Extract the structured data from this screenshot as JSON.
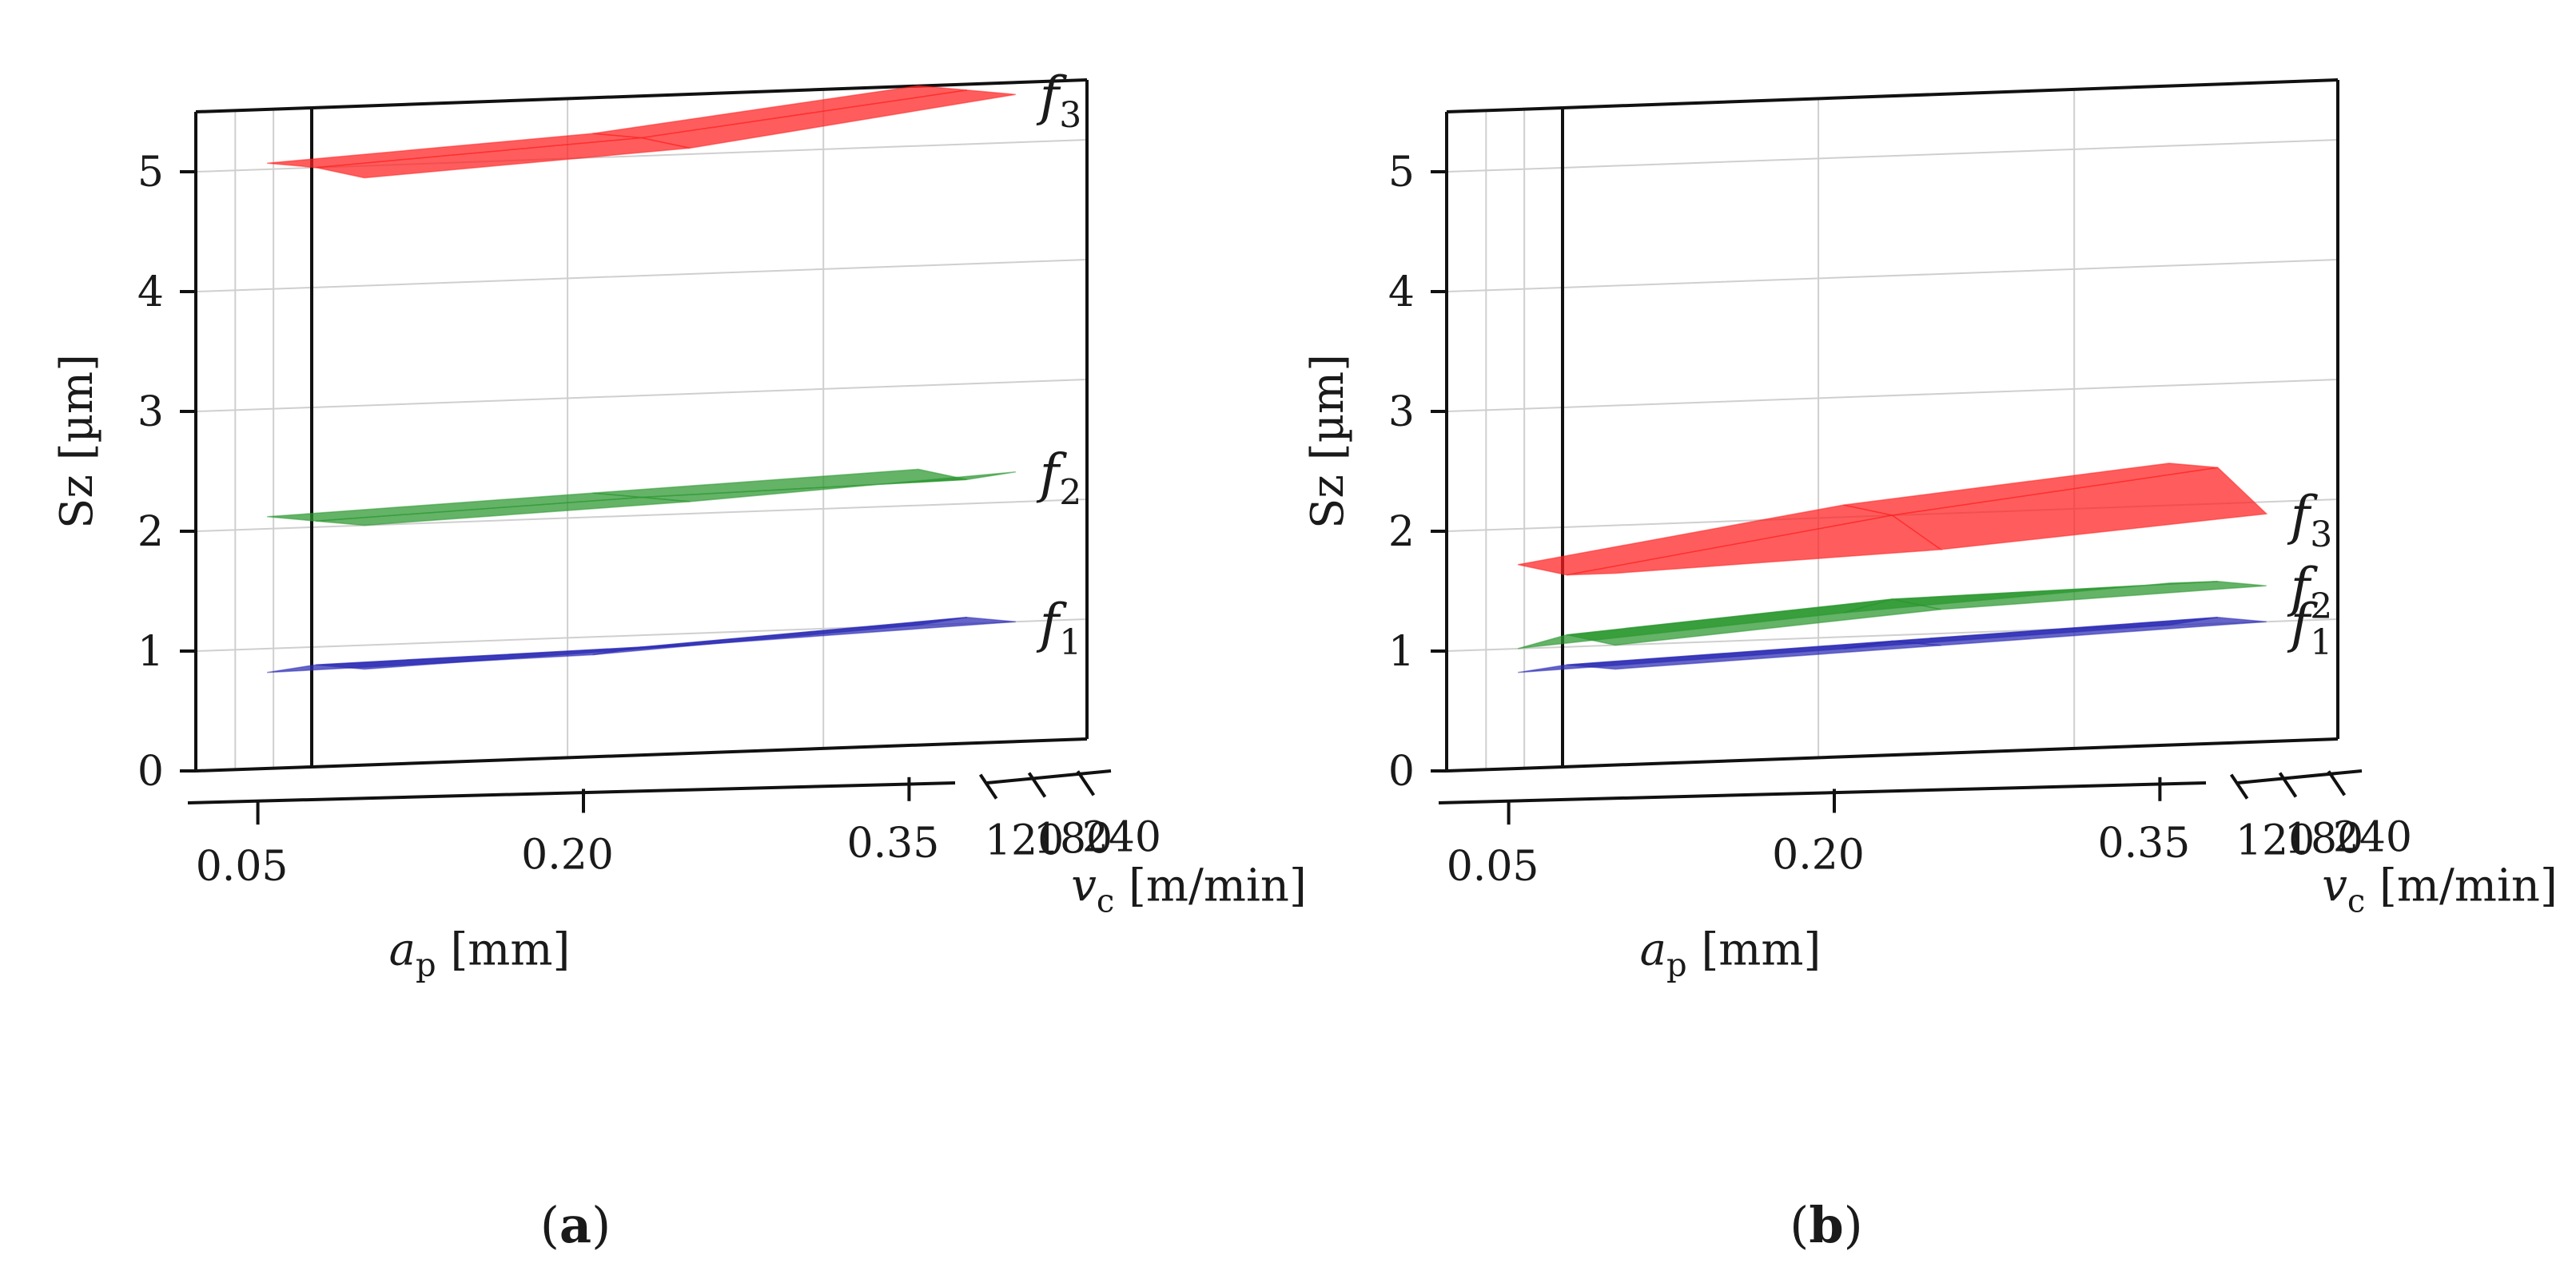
{
  "chart_data": [
    {
      "type": "surface3d",
      "panel_label": "a",
      "zlabel": "Sz [µm]",
      "xlabel": "a_p [mm]",
      "ylabel": "v_c [m/min]",
      "z_ticks": [
        "0",
        "1",
        "2",
        "3",
        "4",
        "5"
      ],
      "x_ticks": [
        "0.05",
        "0.20",
        "0.35"
      ],
      "y_ticks": [
        "120",
        "180",
        "240"
      ],
      "zlim": [
        0,
        5.5
      ],
      "ap_values": [
        0.05,
        0.2,
        0.35
      ],
      "vc_values": [
        120,
        180,
        240
      ],
      "series": [
        {
          "name": "f1",
          "color": "#2a2ab4",
          "z": [
            [
              0.8,
              0.9,
              1.0
            ],
            [
              0.85,
              0.9,
              1.05
            ],
            [
              0.8,
              0.85,
              1.0
            ]
          ]
        },
        {
          "name": "f2",
          "color": "#28962d",
          "z": [
            [
              2.0,
              2.1,
              2.25
            ],
            [
              2.05,
              2.15,
              2.2
            ],
            [
              2.1,
              2.2,
              2.3
            ]
          ]
        },
        {
          "name": "f3",
          "color": "#ff1e1e",
          "z": [
            [
              4.9,
              5.05,
              5.4
            ],
            [
              5.0,
              5.15,
              5.45
            ],
            [
              5.05,
              5.2,
              5.5
            ]
          ]
        }
      ]
    },
    {
      "type": "surface3d",
      "panel_label": "b",
      "zlabel": "Sz [µm]",
      "xlabel": "a_p [mm]",
      "ylabel": "v_c [m/min]",
      "z_ticks": [
        "0",
        "1",
        "2",
        "3",
        "4",
        "5"
      ],
      "x_ticks": [
        "0.05",
        "0.20",
        "0.35"
      ],
      "y_ticks": [
        "120",
        "180",
        "240"
      ],
      "zlim": [
        0,
        5.5
      ],
      "ap_values": [
        0.05,
        0.2,
        0.35
      ],
      "vc_values": [
        120,
        180,
        240
      ],
      "series": [
        {
          "name": "f1",
          "color": "#2a2ab4",
          "z": [
            [
              0.8,
              0.9,
              1.0
            ],
            [
              0.85,
              0.95,
              1.05
            ],
            [
              0.8,
              0.9,
              1.0
            ]
          ]
        },
        {
          "name": "f2",
          "color": "#28962d",
          "z": [
            [
              1.0,
              1.2,
              1.3
            ],
            [
              1.1,
              1.3,
              1.35
            ],
            [
              1.0,
              1.2,
              1.35
            ]
          ]
        },
        {
          "name": "f3",
          "color": "#ff1e1e",
          "z": [
            [
              1.6,
              1.7,
              1.9
            ],
            [
              1.6,
              2.0,
              2.3
            ],
            [
              1.7,
              2.1,
              2.35
            ]
          ]
        }
      ]
    }
  ]
}
